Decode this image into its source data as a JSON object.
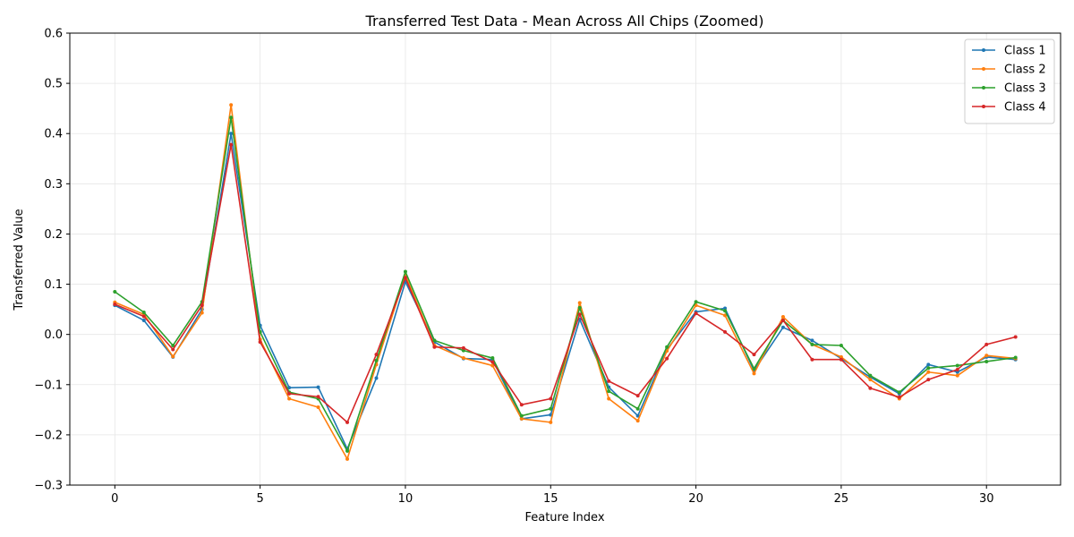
{
  "chart_data": {
    "type": "line",
    "title": "Transferred Test Data - Mean Across All Chips (Zoomed)",
    "xlabel": "Feature Index",
    "ylabel": "Transferred Value",
    "xlim": [
      -1.55,
      32.55
    ],
    "ylim": [
      -0.3,
      0.6
    ],
    "xticks": [
      0,
      5,
      10,
      15,
      20,
      25,
      30
    ],
    "yticks": [
      -0.3,
      -0.2,
      -0.1,
      0.0,
      0.1,
      0.2,
      0.3,
      0.4,
      0.5,
      0.6
    ],
    "ytick_labels": [
      "−0.3",
      "−0.2",
      "−0.1",
      "0.0",
      "0.1",
      "0.2",
      "0.3",
      "0.4",
      "0.5",
      "0.6"
    ],
    "grid": true,
    "legend_position": "top-right",
    "x": [
      0,
      1,
      2,
      3,
      4,
      5,
      6,
      7,
      8,
      9,
      10,
      11,
      12,
      13,
      14,
      15,
      16,
      17,
      18,
      19,
      20,
      21,
      22,
      23,
      24,
      25,
      26,
      27,
      28,
      29,
      30,
      31
    ],
    "series": [
      {
        "name": "Class 1",
        "color": "#1f77b4",
        "values": [
          0.058,
          0.028,
          -0.045,
          0.05,
          0.4,
          0.018,
          -0.106,
          -0.105,
          -0.228,
          -0.087,
          0.105,
          -0.015,
          -0.048,
          -0.05,
          -0.168,
          -0.16,
          0.03,
          -0.105,
          -0.162,
          -0.03,
          0.045,
          0.052,
          -0.072,
          0.014,
          -0.012,
          -0.048,
          -0.085,
          -0.118,
          -0.06,
          -0.075,
          -0.045,
          -0.05
        ]
      },
      {
        "name": "Class 2",
        "color": "#ff7f0e",
        "values": [
          0.064,
          0.04,
          -0.044,
          0.043,
          0.457,
          -0.01,
          -0.128,
          -0.145,
          -0.248,
          -0.06,
          0.118,
          -0.022,
          -0.047,
          -0.062,
          -0.168,
          -0.175,
          0.063,
          -0.128,
          -0.172,
          -0.033,
          0.058,
          0.038,
          -0.078,
          0.035,
          -0.02,
          -0.045,
          -0.09,
          -0.128,
          -0.075,
          -0.082,
          -0.042,
          -0.048
        ]
      },
      {
        "name": "Class 3",
        "color": "#2ca02c",
        "values": [
          0.085,
          0.044,
          -0.022,
          0.065,
          0.432,
          0.005,
          -0.115,
          -0.128,
          -0.232,
          -0.052,
          0.125,
          -0.012,
          -0.032,
          -0.047,
          -0.162,
          -0.148,
          0.053,
          -0.113,
          -0.148,
          -0.025,
          0.065,
          0.047,
          -0.068,
          0.028,
          -0.02,
          -0.022,
          -0.082,
          -0.115,
          -0.067,
          -0.062,
          -0.054,
          -0.046
        ]
      },
      {
        "name": "Class 4",
        "color": "#d62728",
        "values": [
          0.06,
          0.036,
          -0.03,
          0.058,
          0.378,
          -0.015,
          -0.118,
          -0.124,
          -0.175,
          -0.04,
          0.113,
          -0.025,
          -0.027,
          -0.055,
          -0.14,
          -0.128,
          0.04,
          -0.093,
          -0.122,
          -0.048,
          0.042,
          0.005,
          -0.04,
          0.028,
          -0.05,
          -0.05,
          -0.107,
          -0.125,
          -0.09,
          -0.07,
          -0.02,
          -0.005
        ]
      }
    ]
  }
}
